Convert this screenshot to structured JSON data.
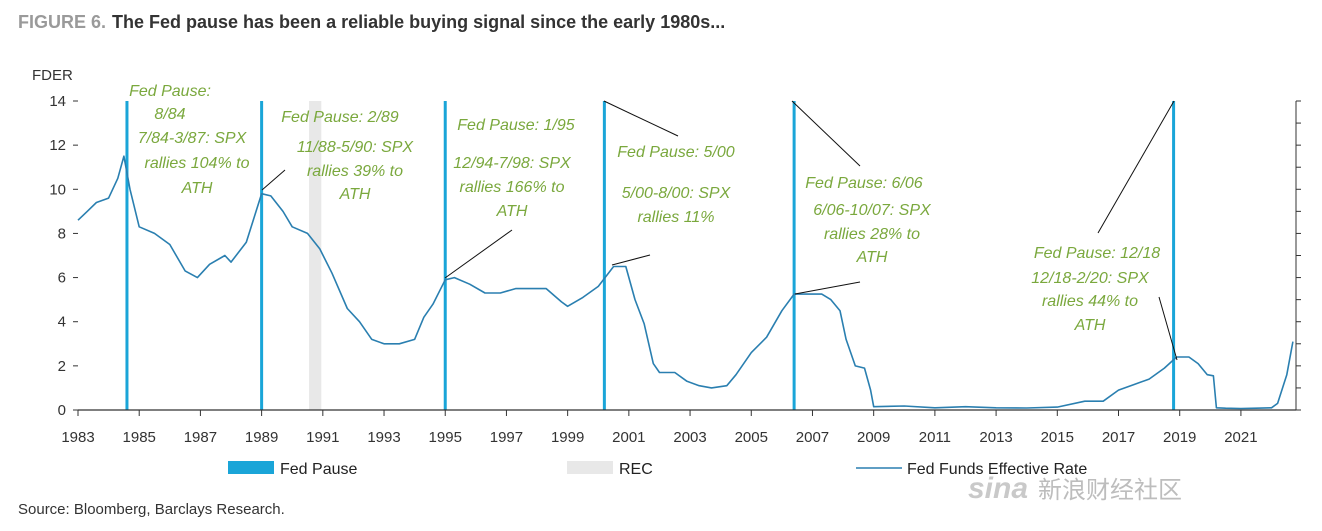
{
  "header": {
    "figure_label": "FIGURE 6.",
    "title": "The Fed pause has been a reliable buying signal since the early 1980s..."
  },
  "source": "Source: Bloomberg, Barclays Research.",
  "watermark": {
    "brand": "sina",
    "text": "新浪财经社区"
  },
  "colors": {
    "fed_pause": "#1aa5d8",
    "rec": "#e8e8e8",
    "rate_line": "#2a7fb0",
    "annotation": "#7aa83d",
    "axis": "#333333"
  },
  "chart_data": {
    "type": "line",
    "ylabel": "FDER",
    "xlim": [
      1983,
      2022.8
    ],
    "ylim": [
      0,
      14
    ],
    "x_ticks": [
      "1983",
      "1985",
      "1987",
      "1989",
      "1991",
      "1993",
      "1995",
      "1997",
      "1999",
      "2001",
      "2003",
      "2005",
      "2007",
      "2009",
      "2011",
      "2013",
      "2015",
      "2017",
      "2019",
      "2021"
    ],
    "y_ticks": [
      "0",
      "2",
      "4",
      "6",
      "8",
      "10",
      "12",
      "14"
    ],
    "legend": {
      "position": "bottom",
      "entries": [
        {
          "label": "Fed Pause",
          "style": "bar"
        },
        {
          "label": "REC",
          "style": "bar"
        },
        {
          "label": "Fed Funds Effective Rate",
          "style": "line"
        }
      ]
    },
    "fed_pauses": [
      1984.6,
      1989.0,
      1995.0,
      2000.2,
      2006.4,
      2018.8
    ],
    "recessions": [
      [
        1990.55,
        1990.95
      ]
    ],
    "series": [
      {
        "name": "Fed Funds Effective Rate",
        "x": [
          1983.0,
          1983.3,
          1983.6,
          1984.0,
          1984.3,
          1984.5,
          1984.7,
          1985.0,
          1985.5,
          1986.0,
          1986.5,
          1986.9,
          1987.3,
          1987.8,
          1988.0,
          1988.5,
          1989.0,
          1989.3,
          1989.7,
          1990.0,
          1990.5,
          1990.9,
          1991.3,
          1991.8,
          1992.2,
          1992.6,
          1993.0,
          1993.5,
          1994.0,
          1994.3,
          1994.6,
          1995.0,
          1995.3,
          1995.8,
          1996.3,
          1996.8,
          1997.3,
          1997.8,
          1998.3,
          1998.8,
          1999.0,
          1999.5,
          2000.0,
          2000.5,
          2000.9,
          2001.2,
          2001.5,
          2001.8,
          2002.0,
          2002.5,
          2002.9,
          2003.3,
          2003.7,
          2004.2,
          2004.5,
          2005.0,
          2005.5,
          2006.0,
          2006.4,
          2006.8,
          2007.3,
          2007.6,
          2007.9,
          2008.1,
          2008.4,
          2008.7,
          2008.9,
          2009.0,
          2010.0,
          2011.0,
          2012.0,
          2013.0,
          2014.0,
          2015.0,
          2015.9,
          2016.5,
          2017.0,
          2017.5,
          2018.0,
          2018.5,
          2018.9,
          2019.3,
          2019.6,
          2019.9,
          2020.1,
          2020.2,
          2020.5,
          2021.0,
          2021.5,
          2022.0,
          2022.2,
          2022.5,
          2022.7
        ],
        "y": [
          8.6,
          9.0,
          9.4,
          9.6,
          10.5,
          11.5,
          10.0,
          8.3,
          8.0,
          7.5,
          6.3,
          6.0,
          6.6,
          7.0,
          6.7,
          7.6,
          9.8,
          9.7,
          9.0,
          8.3,
          8.0,
          7.3,
          6.2,
          4.6,
          4.0,
          3.2,
          3.0,
          3.0,
          3.2,
          4.2,
          4.8,
          5.9,
          6.0,
          5.7,
          5.3,
          5.3,
          5.5,
          5.5,
          5.5,
          4.9,
          4.7,
          5.1,
          5.6,
          6.5,
          6.5,
          5.0,
          3.9,
          2.1,
          1.7,
          1.7,
          1.3,
          1.1,
          1.0,
          1.1,
          1.6,
          2.6,
          3.3,
          4.5,
          5.25,
          5.25,
          5.25,
          5.0,
          4.5,
          3.2,
          2.0,
          1.9,
          0.9,
          0.15,
          0.18,
          0.1,
          0.15,
          0.1,
          0.09,
          0.13,
          0.4,
          0.4,
          0.9,
          1.15,
          1.4,
          1.9,
          2.4,
          2.4,
          2.1,
          1.6,
          1.55,
          0.1,
          0.08,
          0.07,
          0.08,
          0.1,
          0.3,
          1.6,
          3.1
        ]
      }
    ],
    "annotations": [
      {
        "lines": [
          "Fed Pause:",
          "8/84",
          "7/84-3/87: SPX",
          "rallies 104% to",
          "ATH"
        ]
      },
      {
        "lines": [
          "Fed Pause: 2/89",
          "11/88-5/90: SPX",
          "rallies 39% to",
          "ATH"
        ]
      },
      {
        "lines": [
          "Fed Pause: 1/95",
          "12/94-7/98: SPX",
          "rallies 166% to",
          "ATH"
        ]
      },
      {
        "lines": [
          "Fed Pause: 5/00",
          "5/00-8/00: SPX",
          "rallies 11%"
        ]
      },
      {
        "lines": [
          "Fed Pause:  6/06",
          "6/06-10/07: SPX",
          "rallies 28% to",
          "ATH"
        ]
      },
      {
        "lines": [
          "Fed Pause: 12/18",
          "12/18-2/20: SPX",
          "rallies 44% to",
          "ATH"
        ]
      }
    ]
  }
}
